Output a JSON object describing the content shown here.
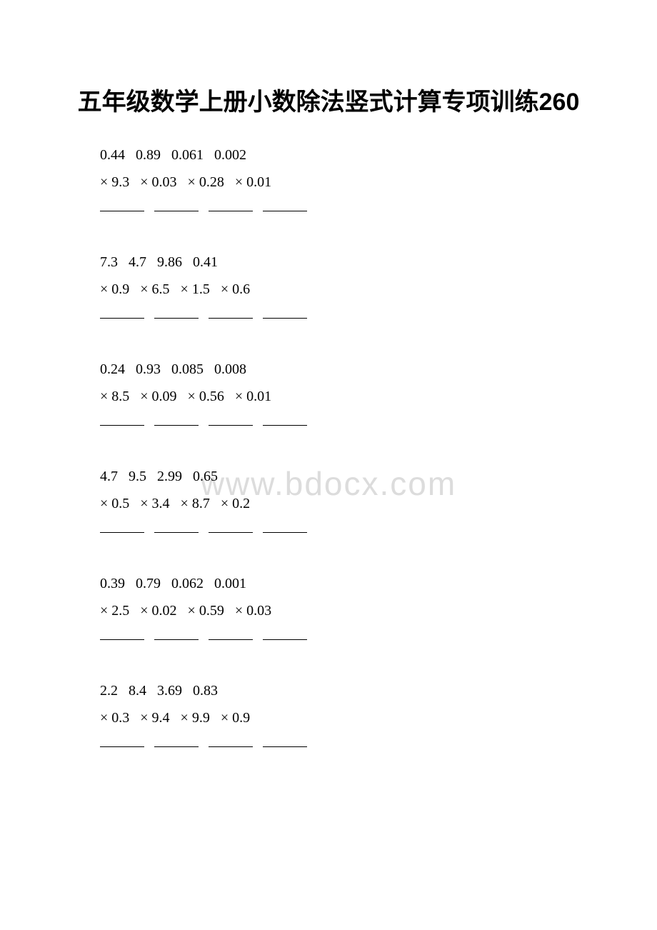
{
  "title": "五年级数学上册小数除法竖式计算专项训练260",
  "watermark": "www.bdocx.com",
  "groups": [
    {
      "top_row": "0.44   0.89   0.061   0.002",
      "mul_row": "× 9.3   × 0.03   × 0.28   × 0.01"
    },
    {
      "top_row": "7.3   4.7   9.86   0.41",
      "mul_row": "× 0.9   × 6.5   × 1.5   × 0.6"
    },
    {
      "top_row": "0.24   0.93   0.085   0.008",
      "mul_row": "× 8.5   × 0.09   × 0.56   × 0.01"
    },
    {
      "top_row": "4.7   9.5   2.99   0.65",
      "mul_row": "× 0.5   × 3.4   × 8.7   × 0.2"
    },
    {
      "top_row": "0.39   0.79   0.062   0.001",
      "mul_row": "× 2.5   × 0.02   × 0.59   × 0.03"
    },
    {
      "top_row": "2.2   8.4   3.69   0.83",
      "mul_row": "× 0.3   × 9.4   × 9.9   × 0.9"
    }
  ],
  "colors": {
    "background": "#ffffff",
    "text": "#000000",
    "watermark": "#dcdcdc"
  },
  "typography": {
    "title_fontsize": 34,
    "title_font": "SimHei",
    "body_fontsize": 20,
    "body_font": "Times New Roman"
  }
}
